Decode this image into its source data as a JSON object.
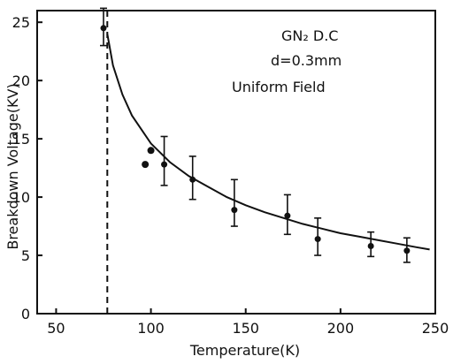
{
  "chart_data": {
    "type": "scatter",
    "xlabel": "Temperature(K)",
    "ylabel": "Breakdown Voltage(KV)",
    "xlim": [
      40,
      250
    ],
    "ylim": [
      0,
      26
    ],
    "xticks": [
      50,
      100,
      150,
      200,
      250
    ],
    "yticks": [
      0,
      5,
      10,
      15,
      20,
      25
    ],
    "annotations": [
      {
        "text": "GN₂ D.C"
      },
      {
        "text": "d=0.3mm"
      },
      {
        "text": "Uniform Field"
      }
    ],
    "vertical_line_x": 77,
    "fit_curve": {
      "style": "solid",
      "points": [
        [
          77,
          24
        ],
        [
          80,
          21.3
        ],
        [
          85,
          18.8
        ],
        [
          90,
          17.0
        ],
        [
          100,
          14.6
        ],
        [
          110,
          13.0
        ],
        [
          120,
          11.8
        ],
        [
          130,
          10.9
        ],
        [
          140,
          10.0
        ],
        [
          150,
          9.3
        ],
        [
          160,
          8.7
        ],
        [
          170,
          8.2
        ],
        [
          180,
          7.7
        ],
        [
          190,
          7.3
        ],
        [
          200,
          6.9
        ],
        [
          210,
          6.6
        ],
        [
          220,
          6.3
        ],
        [
          230,
          6.0
        ],
        [
          240,
          5.7
        ],
        [
          247,
          5.5
        ]
      ]
    },
    "series": [
      {
        "marker": "errorbar",
        "points": [
          {
            "x": 75,
            "y": 24.5,
            "low": 23,
            "high": 26.2
          },
          {
            "x": 107,
            "y": 12.8,
            "low": 11,
            "high": 15.2
          },
          {
            "x": 122,
            "y": 11.5,
            "low": 9.8,
            "high": 13.5
          },
          {
            "x": 144,
            "y": 8.9,
            "low": 7.5,
            "high": 11.5
          },
          {
            "x": 172,
            "y": 8.4,
            "low": 6.8,
            "high": 10.2
          },
          {
            "x": 188,
            "y": 6.4,
            "low": 5.0,
            "high": 8.2
          },
          {
            "x": 216,
            "y": 5.8,
            "low": 4.9,
            "high": 7.0
          },
          {
            "x": 235,
            "y": 5.4,
            "low": 4.4,
            "high": 6.5
          }
        ]
      },
      {
        "marker": "dot",
        "points": [
          {
            "x": 97,
            "y": 12.8
          },
          {
            "x": 100,
            "y": 14.0
          }
        ]
      }
    ]
  }
}
